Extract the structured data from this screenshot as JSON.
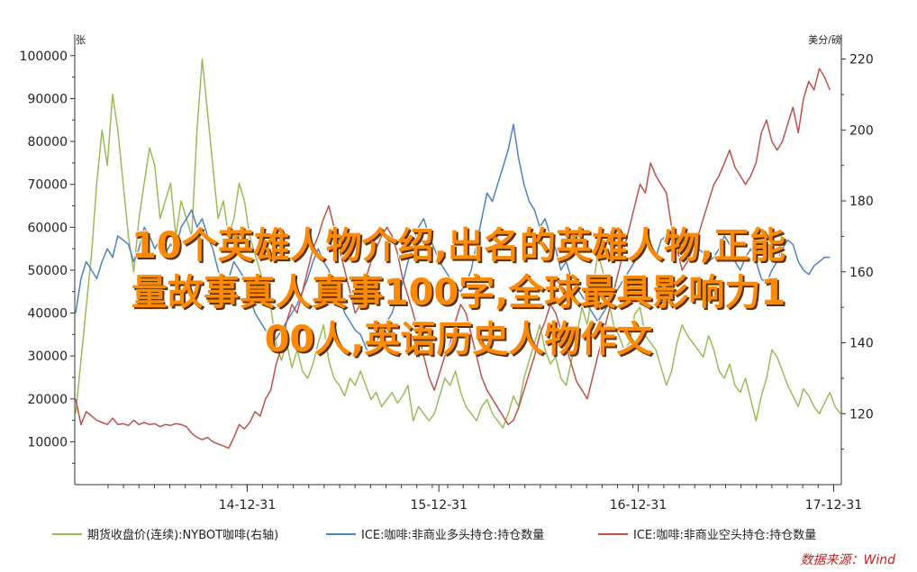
{
  "chart_data": {
    "type": "line",
    "left_axis_unit": "张",
    "right_axis_unit": "美分/磅",
    "left_ylim": [
      0,
      105000
    ],
    "right_ylim": [
      100,
      227
    ],
    "left_ticks": [
      10000,
      20000,
      30000,
      40000,
      50000,
      60000,
      70000,
      80000,
      90000,
      100000
    ],
    "right_ticks": [
      120,
      140,
      160,
      180,
      200,
      220
    ],
    "x_tick_labels": [
      "14-12-31",
      "15-12-31",
      "16-12-31",
      "17-12-31"
    ],
    "series": [
      {
        "name": "期货收盘价(连续):NYBOT咖啡(右轴)",
        "axis": "right",
        "color": "#9bbb59",
        "values": [
          120,
          135,
          150,
          165,
          185,
          200,
          190,
          210,
          200,
          185,
          170,
          160,
          175,
          185,
          195,
          190,
          175,
          180,
          185,
          170,
          180,
          175,
          170,
          200,
          220,
          205,
          190,
          175,
          180,
          170,
          175,
          185,
          180,
          170,
          165,
          160,
          155,
          150,
          140,
          135,
          140,
          133,
          138,
          132,
          130,
          134,
          140,
          145,
          135,
          130,
          128,
          125,
          130,
          128,
          132,
          128,
          124,
          126,
          122,
          124,
          126,
          123,
          125,
          128,
          118,
          122,
          120,
          118,
          120,
          125,
          130,
          128,
          132,
          126,
          122,
          120,
          118,
          122,
          124,
          120,
          118,
          116,
          120,
          125,
          122,
          130,
          135,
          140,
          145,
          138,
          134,
          136,
          130,
          128,
          135,
          142,
          150,
          145,
          155,
          165,
          160,
          152,
          145,
          142,
          138,
          140,
          148,
          150,
          142,
          140,
          138,
          133,
          128,
          132,
          140,
          145,
          142,
          140,
          138,
          136,
          142,
          138,
          132,
          130,
          134,
          128,
          126,
          130,
          124,
          118,
          125,
          130,
          138,
          136,
          132,
          128,
          125,
          122,
          127,
          125,
          122,
          120,
          123,
          126,
          122,
          120
        ]
      },
      {
        "name": "ICE:咖啡:非商业多头持仓:持仓数量",
        "axis": "left",
        "color": "#4f81bd",
        "values": [
          40000,
          48000,
          52000,
          50000,
          48000,
          52000,
          55000,
          53000,
          58000,
          57000,
          56000,
          52000,
          55000,
          60000,
          58000,
          55000,
          57000,
          54000,
          56000,
          55000,
          60000,
          62000,
          64000,
          60000,
          62000,
          58000,
          55000,
          50000,
          46000,
          48000,
          52000,
          50000,
          48000,
          44000,
          40000,
          38000,
          36000,
          33000,
          34000,
          36000,
          38000,
          40000,
          42000,
          45000,
          48000,
          52000,
          55000,
          52000,
          50000,
          46000,
          44000,
          40000,
          38000,
          36000,
          35000,
          32000,
          30000,
          33000,
          36000,
          38000,
          40000,
          44000,
          47000,
          52000,
          56000,
          60000,
          62000,
          58000,
          55000,
          52000,
          50000,
          48000,
          46000,
          45000,
          47000,
          50000,
          56000,
          62000,
          68000,
          66000,
          70000,
          74000,
          78000,
          84000,
          76000,
          70000,
          66000,
          64000,
          60000,
          62000,
          58000,
          55000,
          50000,
          52000,
          48000,
          46000,
          44000,
          42000,
          40000,
          38000,
          40000,
          42000,
          44000,
          46000,
          48000,
          50000,
          52000,
          54000,
          56000,
          55000,
          53000,
          57000,
          58000,
          56000,
          55000,
          57000,
          58000,
          56000,
          55000,
          54000,
          52000,
          53000,
          55000,
          58000,
          56000,
          52000,
          50000,
          53000,
          55000,
          52000,
          48000,
          47000,
          50000,
          52000,
          55000,
          57000,
          56000,
          52000,
          50000,
          49000,
          51000,
          52000,
          53000,
          53000
        ]
      },
      {
        "name": "ICE:咖啡:非商业空头持仓:持仓数量",
        "axis": "left",
        "color": "#c0504d",
        "values": [
          20000,
          14000,
          17000,
          16000,
          15000,
          14500,
          14000,
          15500,
          14000,
          14200,
          13800,
          15000,
          14000,
          14500,
          14000,
          14200,
          13500,
          14000,
          13800,
          14200,
          14000,
          13500,
          12000,
          11000,
          10500,
          11000,
          10000,
          9500,
          9000,
          8500,
          11000,
          14000,
          13000,
          14500,
          17000,
          16000,
          20000,
          22000,
          28000,
          32000,
          38000,
          42000,
          40000,
          45000,
          50000,
          55000,
          58000,
          62000,
          65000,
          60000,
          55000,
          50000,
          45000,
          40000,
          42000,
          48000,
          52000,
          55000,
          58000,
          60000,
          58000,
          54000,
          48000,
          44000,
          40000,
          35000,
          30000,
          25000,
          22000,
          26000,
          30000,
          33000,
          38000,
          42000,
          40000,
          35000,
          30000,
          25000,
          22000,
          20000,
          18000,
          16000,
          14000,
          15000,
          18000,
          22000,
          26000,
          30000,
          35000,
          38000,
          42000,
          40000,
          36000,
          32000,
          28000,
          24000,
          22000,
          20000,
          25000,
          30000,
          35000,
          40000,
          45000,
          50000,
          55000,
          60000,
          65000,
          70000,
          68000,
          75000,
          72000,
          70000,
          68000,
          60000,
          55000,
          50000,
          52000,
          55000,
          58000,
          62000,
          66000,
          70000,
          72000,
          75000,
          78000,
          74000,
          72000,
          70000,
          72000,
          75000,
          82000,
          85000,
          80000,
          78000,
          80000,
          84000,
          88000,
          82000,
          90000,
          94000,
          92000,
          97000,
          95000,
          92000
        ]
      }
    ],
    "watermark": {
      "lines": [
        "10个英雄人物介绍,出名的英雄人物,正能",
        "量故事真人真事100字,全球最具影响力1",
        "00人,英语历史人物作文"
      ],
      "color": "#ff8a00"
    },
    "source": "数据来源：Wind"
  }
}
